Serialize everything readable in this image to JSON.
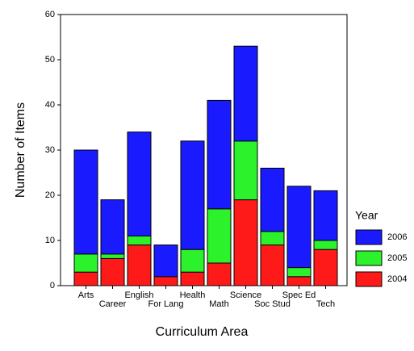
{
  "chart_data": {
    "type": "stacked-bar",
    "x_label": "Curriculum Area",
    "y_label": "Number of Items",
    "categories": [
      "Arts",
      "Career",
      "English",
      "For Lang",
      "Health",
      "Math",
      "Science",
      "Soc Stud",
      "Spec Ed",
      "Tech"
    ],
    "series": [
      {
        "name": "2004",
        "color": "#ff1a1a",
        "values": [
          3,
          6,
          9,
          2,
          3,
          5,
          19,
          9,
          2,
          8
        ]
      },
      {
        "name": "2005",
        "color": "#2cf22c",
        "values": [
          4,
          1,
          2,
          0,
          5,
          12,
          13,
          3,
          2,
          2
        ]
      },
      {
        "name": "2006",
        "color": "#1a1aff",
        "values": [
          23,
          12,
          23,
          7,
          24,
          24,
          21,
          14,
          18,
          11
        ]
      }
    ],
    "legend_title": "Year",
    "legend_position": "right",
    "ylim": [
      0,
      60
    ],
    "yticks": [
      0,
      10,
      20,
      30,
      40,
      50,
      60
    ]
  }
}
